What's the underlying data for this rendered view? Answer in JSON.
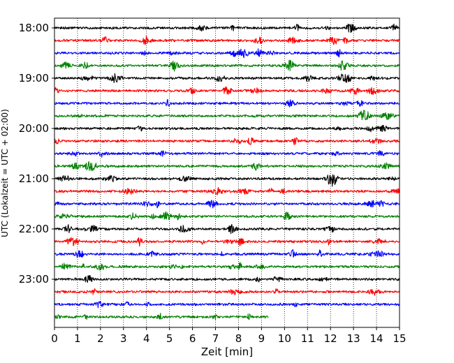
{
  "chart_data": {
    "type": "line",
    "title": "",
    "xlabel": "Zeit  [min]",
    "ylabel": "UTC (Lokalzeit = UTC + 02:00)",
    "xlim": [
      0,
      15
    ],
    "x_ticks": [
      0,
      1,
      2,
      3,
      4,
      5,
      6,
      7,
      8,
      9,
      10,
      11,
      12,
      13,
      14,
      15
    ],
    "x_tick_labels": [
      "0",
      "1",
      "2",
      "3",
      "4",
      "5",
      "6",
      "7",
      "8",
      "9",
      "10",
      "11",
      "12",
      "13",
      "14",
      "15"
    ],
    "y_tick_labels": [
      "18:00",
      "19:00",
      "20:00",
      "21:00",
      "22:00",
      "23:00"
    ],
    "trace_interval_min": 15,
    "grid": "vertical-dotted",
    "colors": [
      "#000000",
      "#ff0000",
      "#0000ff",
      "#008000"
    ],
    "series": [
      {
        "start": "18:00",
        "color": "#000000",
        "end_min": 15
      },
      {
        "start": "18:15",
        "color": "#ff0000",
        "end_min": 15
      },
      {
        "start": "18:30",
        "color": "#0000ff",
        "end_min": 15
      },
      {
        "start": "18:45",
        "color": "#008000",
        "end_min": 15
      },
      {
        "start": "19:00",
        "color": "#000000",
        "end_min": 15
      },
      {
        "start": "19:15",
        "color": "#ff0000",
        "end_min": 15
      },
      {
        "start": "19:30",
        "color": "#0000ff",
        "end_min": 15
      },
      {
        "start": "19:45",
        "color": "#008000",
        "end_min": 15
      },
      {
        "start": "20:00",
        "color": "#000000",
        "end_min": 15
      },
      {
        "start": "20:15",
        "color": "#ff0000",
        "end_min": 15
      },
      {
        "start": "20:30",
        "color": "#0000ff",
        "end_min": 15
      },
      {
        "start": "20:45",
        "color": "#008000",
        "end_min": 15
      },
      {
        "start": "21:00",
        "color": "#000000",
        "end_min": 15
      },
      {
        "start": "21:15",
        "color": "#ff0000",
        "end_min": 15
      },
      {
        "start": "21:30",
        "color": "#0000ff",
        "end_min": 15
      },
      {
        "start": "21:45",
        "color": "#008000",
        "end_min": 15
      },
      {
        "start": "22:00",
        "color": "#000000",
        "end_min": 15
      },
      {
        "start": "22:15",
        "color": "#ff0000",
        "end_min": 15
      },
      {
        "start": "22:30",
        "color": "#0000ff",
        "end_min": 15
      },
      {
        "start": "22:45",
        "color": "#008000",
        "end_min": 15
      },
      {
        "start": "23:00",
        "color": "#000000",
        "end_min": 15
      },
      {
        "start": "23:15",
        "color": "#ff0000",
        "end_min": 15
      },
      {
        "start": "23:30",
        "color": "#0000ff",
        "end_min": 15
      },
      {
        "start": "23:45",
        "color": "#008000",
        "end_min": 9.3
      }
    ]
  }
}
